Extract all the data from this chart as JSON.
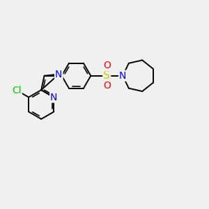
{
  "background_color": "#f0f0f0",
  "bond_color": "#000000",
  "N_color": "#0000ff",
  "Cl_color": "#00cc00",
  "S_color": "#cccc00",
  "O_color": "#ff0000",
  "font_size": 10,
  "figsize": [
    3.0,
    3.0
  ],
  "dpi": 100,
  "xlim": [
    -4.5,
    7.5
  ],
  "ylim": [
    -3.0,
    3.0
  ]
}
